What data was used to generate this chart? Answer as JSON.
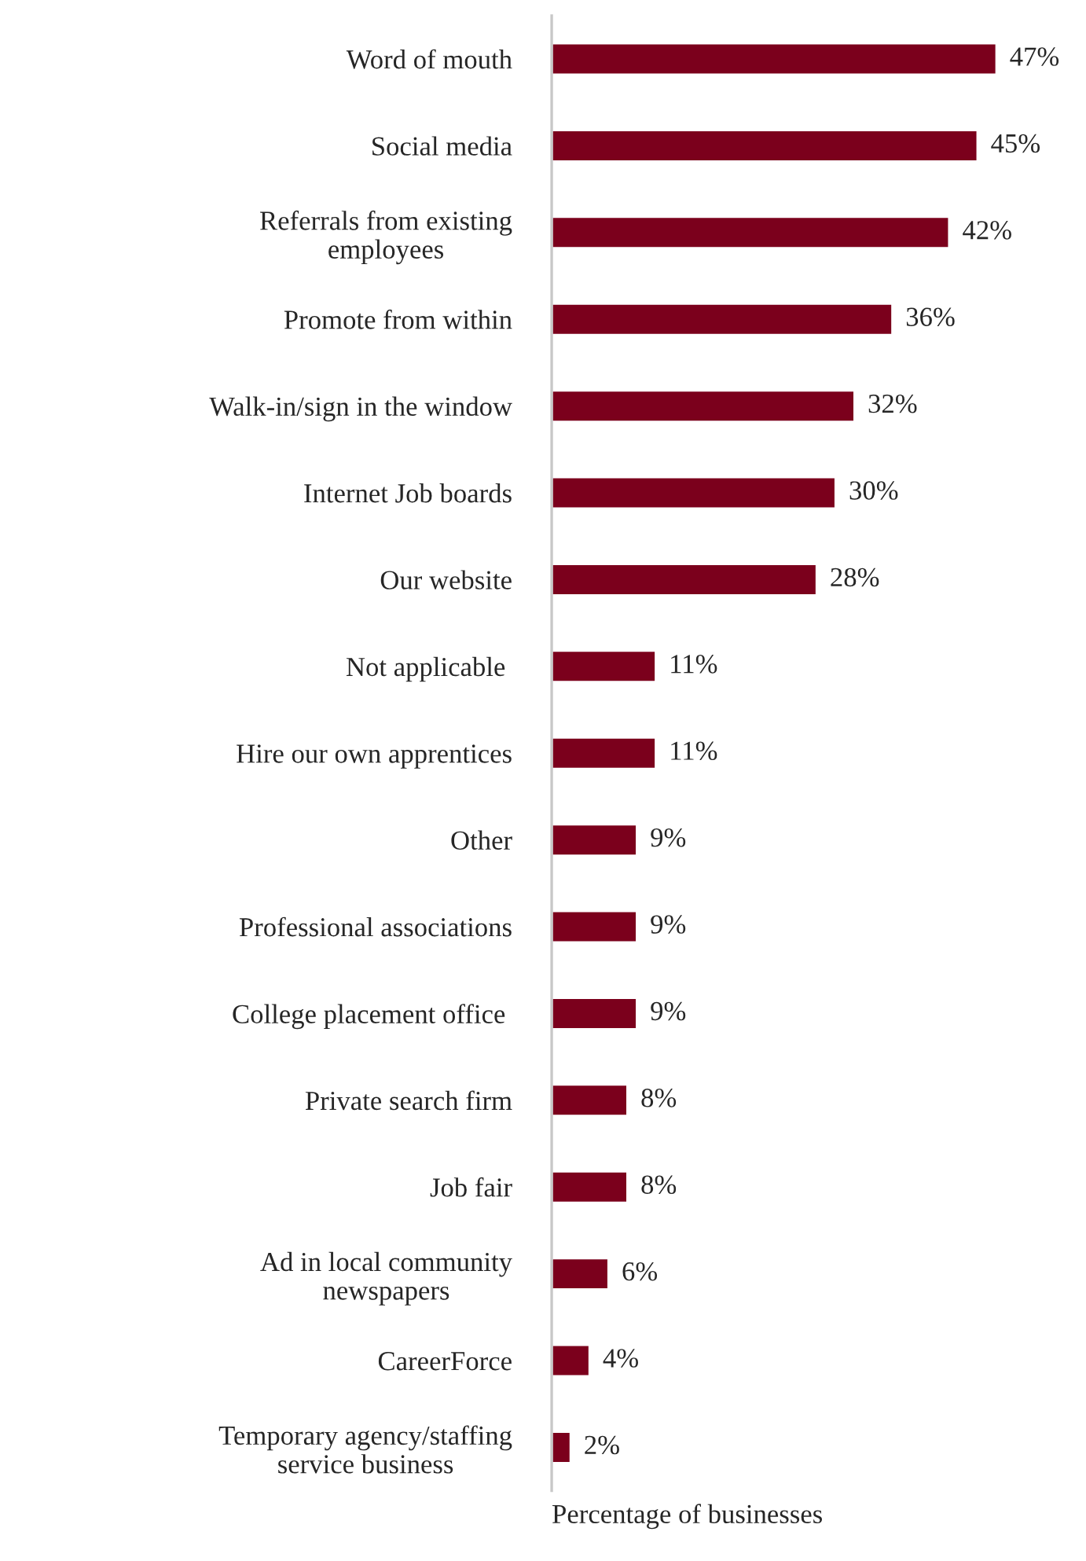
{
  "chart_data": {
    "type": "bar",
    "orientation": "horizontal",
    "xlabel": "Percentage of businesses",
    "categories": [
      "Word of mouth",
      "Social media",
      "Referrals from existing\nemployees",
      "Promote from within",
      "Walk-in/sign in the window",
      "Internet Job boards",
      "Our website",
      "Not applicable ",
      "Hire our own apprentices",
      "Other",
      "Professional associations",
      "College placement office ",
      "Private search firm",
      "Job fair",
      "Ad in local community\nnewspapers",
      "CareerForce",
      "Temporary agency/staffing\nservice business"
    ],
    "values": [
      47,
      45,
      42,
      36,
      32,
      30,
      28,
      11,
      11,
      9,
      9,
      9,
      8,
      8,
      6,
      4,
      2
    ],
    "value_labels": [
      "47%",
      "45%",
      "42%",
      "36%",
      "32%",
      "30%",
      "28%",
      "11%",
      "11%",
      "9%",
      "9%",
      "9%",
      "8%",
      "8%",
      "6%",
      "4%",
      "2%"
    ],
    "color": "#7b001c",
    "tick_labels": "y",
    "grid": false,
    "legend": false
  }
}
